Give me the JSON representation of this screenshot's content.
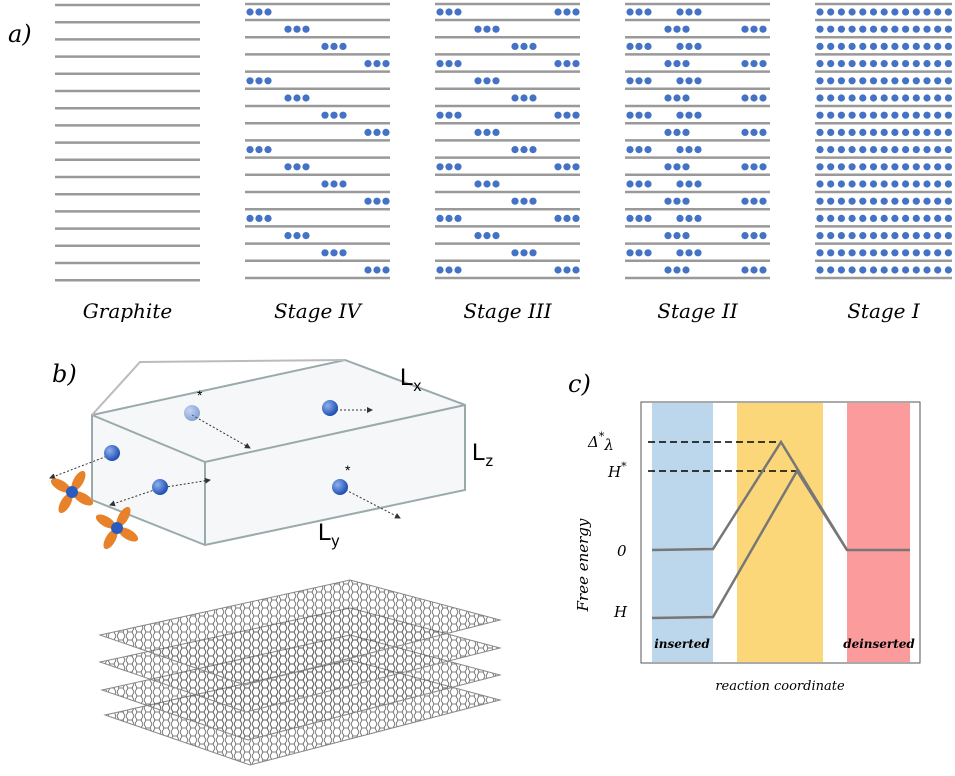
{
  "panel_a": {
    "label": "a)",
    "columns": [
      "Graphite",
      "Stage IV",
      "Stage III",
      "Stage II",
      "Stage I"
    ]
  },
  "panel_b": {
    "label": "b)",
    "dimensions": {
      "x": {
        "main": "L",
        "sub": "x"
      },
      "z": {
        "main": "L",
        "sub": "z"
      },
      "y": {
        "main": "L",
        "sub": "y"
      }
    },
    "markers": [
      "*",
      "*"
    ]
  },
  "panel_c": {
    "label": "c)",
    "y_axis_label": "Free energy",
    "x_axis_label": "reaction coordinate",
    "levels": [
      {
        "main": "Δ",
        "sup": "*",
        "sub": "λ"
      },
      {
        "main": "H",
        "sup": "*"
      },
      {
        "main": "0"
      },
      {
        "main": "H"
      }
    ],
    "regions": [
      "inserted",
      "deinserted"
    ]
  }
}
